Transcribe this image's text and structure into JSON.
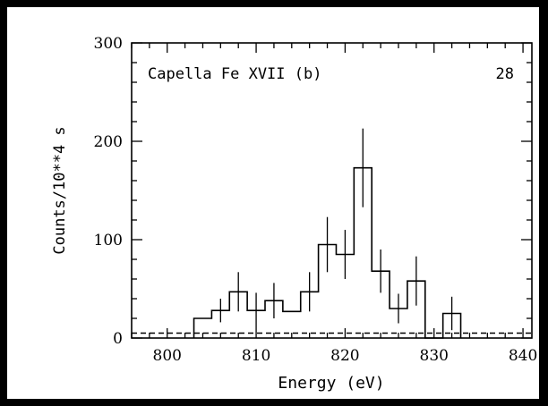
{
  "chart_data": {
    "type": "line",
    "title": "Capella Fe XVII (b)",
    "panel_label": "28",
    "xlabel": "Energy (eV)",
    "ylabel": "Counts/10**4 s",
    "xlim": [
      796,
      841
    ],
    "ylim": [
      0,
      300
    ],
    "x_ticks": [
      800,
      810,
      820,
      830,
      840
    ],
    "y_ticks": [
      0,
      100,
      200,
      300
    ],
    "background_level": 5,
    "bins": [
      {
        "x0": 803.0,
        "x1": 805.0,
        "y": 20,
        "err": 0
      },
      {
        "x0": 805.0,
        "x1": 807.0,
        "y": 28,
        "err": 12
      },
      {
        "x0": 807.0,
        "x1": 809.0,
        "y": 47,
        "err": 20
      },
      {
        "x0": 809.0,
        "x1": 811.0,
        "y": 28,
        "err": 18
      },
      {
        "x0": 811.0,
        "x1": 813.0,
        "y": 38,
        "err": 18
      },
      {
        "x0": 813.0,
        "x1": 815.0,
        "y": 27,
        "err": 0
      },
      {
        "x0": 815.0,
        "x1": 817.0,
        "y": 47,
        "err": 20
      },
      {
        "x0": 817.0,
        "x1": 819.0,
        "y": 95,
        "err": 28
      },
      {
        "x0": 819.0,
        "x1": 821.0,
        "y": 85,
        "err": 25
      },
      {
        "x0": 821.0,
        "x1": 823.0,
        "y": 173,
        "err": 40
      },
      {
        "x0": 823.0,
        "x1": 825.0,
        "y": 68,
        "err": 22
      },
      {
        "x0": 825.0,
        "x1": 827.0,
        "y": 30,
        "err": 15
      },
      {
        "x0": 827.0,
        "x1": 829.0,
        "y": 58,
        "err": 25
      },
      {
        "x0": 829.0,
        "x1": 831.0,
        "y": 0,
        "err": 0
      },
      {
        "x0": 831.0,
        "x1": 833.0,
        "y": 25,
        "err": 17
      }
    ]
  }
}
